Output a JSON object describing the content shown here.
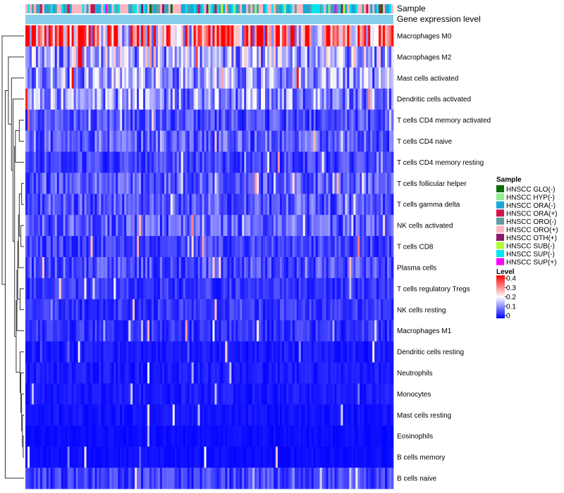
{
  "chart_data": {
    "type": "heatmap",
    "title": "",
    "row_labels": [
      "Macrophages M0",
      "Macrophages M2",
      "Mast cells activated",
      "Dendritic cells activated",
      "T cells CD4 memory activated",
      "T cells CD4 naive",
      "T cells CD4 memory resting",
      "T cells follicular helper",
      "T cells gamma delta",
      "NK cells activated",
      "T cells CD8",
      "Plasma cells",
      "T cells regulatory  Tregs",
      "NK cells resting",
      "Macrophages M1",
      "Dendritic cells resting",
      "Neutrophils",
      "Monocytes",
      "Mast cells resting",
      "Eosinophils",
      "B cells memory",
      "B cells naive"
    ],
    "row_mean_level": [
      0.3,
      0.14,
      0.12,
      0.12,
      0.06,
      0.07,
      0.05,
      0.07,
      0.07,
      0.07,
      0.05,
      0.06,
      0.04,
      0.04,
      0.04,
      0.02,
      0.02,
      0.02,
      0.015,
      0.01,
      0.01,
      0.05
    ],
    "n_samples": 175,
    "annotation_tracks": [
      {
        "name": "Sample"
      },
      {
        "name": "Gene expression level"
      }
    ],
    "sample_groups": [
      {
        "name": "HNSCC GLO(-)",
        "color": "#0B6B0B"
      },
      {
        "name": "HNSCC HYP(-)",
        "color": "#90EE90"
      },
      {
        "name": "HNSCC ORA(-)",
        "color": "#19A8DA"
      },
      {
        "name": "HNSCC ORA(+)",
        "color": "#D11149"
      },
      {
        "name": "HNSCC ORO(-)",
        "color": "#5F9EA0"
      },
      {
        "name": "HNSCC ORO(+)",
        "color": "#FFB6C1"
      },
      {
        "name": "HNSCC OTH(+)",
        "color": "#8B1A6B"
      },
      {
        "name": "HNSCC SUB(-)",
        "color": "#ADFF2F"
      },
      {
        "name": "HNSCC SUP(-)",
        "color": "#00E5EE"
      },
      {
        "name": "HNSCC SUP(+)",
        "color": "#FF00FF"
      }
    ],
    "sample_group_weights": [
      2,
      4,
      18,
      4,
      13,
      17,
      2,
      2,
      14,
      1
    ],
    "expression_level_color": "#87CEEB",
    "color_scale": {
      "title": "Level",
      "min": 0,
      "max": 0.4,
      "ticks": [
        "0.4",
        "0.3",
        "0.2",
        "0.1",
        "0"
      ],
      "tick_values": [
        0.4,
        0.3,
        0.2,
        0.1,
        0
      ],
      "colors": [
        "#0000FF",
        "#FFFFFF",
        "#FF0000"
      ]
    },
    "dendrogram": {
      "leaf_order": [
        0,
        1,
        2,
        3,
        4,
        5,
        6,
        7,
        8,
        9,
        10,
        11,
        12,
        13,
        14,
        15,
        16,
        17,
        18,
        19,
        20,
        21
      ],
      "merges": [
        [
          19,
          20,
          0.5
        ],
        [
          18,
          -1,
          1.0
        ],
        [
          17,
          -2,
          1.5
        ],
        [
          16,
          -3,
          2.0
        ],
        [
          15,
          -4,
          2.5
        ],
        [
          7,
          8,
          1.5
        ],
        [
          9,
          10,
          2.0
        ],
        [
          -6,
          -7,
          3.0
        ],
        [
          11,
          -8,
          3.5
        ],
        [
          12,
          13,
          2.5
        ],
        [
          -9,
          -10,
          4.0
        ],
        [
          14,
          -11,
          4.5
        ],
        [
          -5,
          -12,
          5.0
        ],
        [
          4,
          5,
          3.0
        ],
        [
          -14,
          6,
          5.5
        ],
        [
          -13,
          -15,
          6.0
        ],
        [
          3,
          -16,
          7.0
        ],
        [
          2,
          -17,
          8.0
        ],
        [
          1,
          -18,
          10.0
        ],
        [
          -19,
          21,
          12.0
        ],
        [
          0,
          -20,
          14.0
        ]
      ]
    }
  },
  "legend": {
    "sample_title": "Sample",
    "level_title": "Level"
  }
}
